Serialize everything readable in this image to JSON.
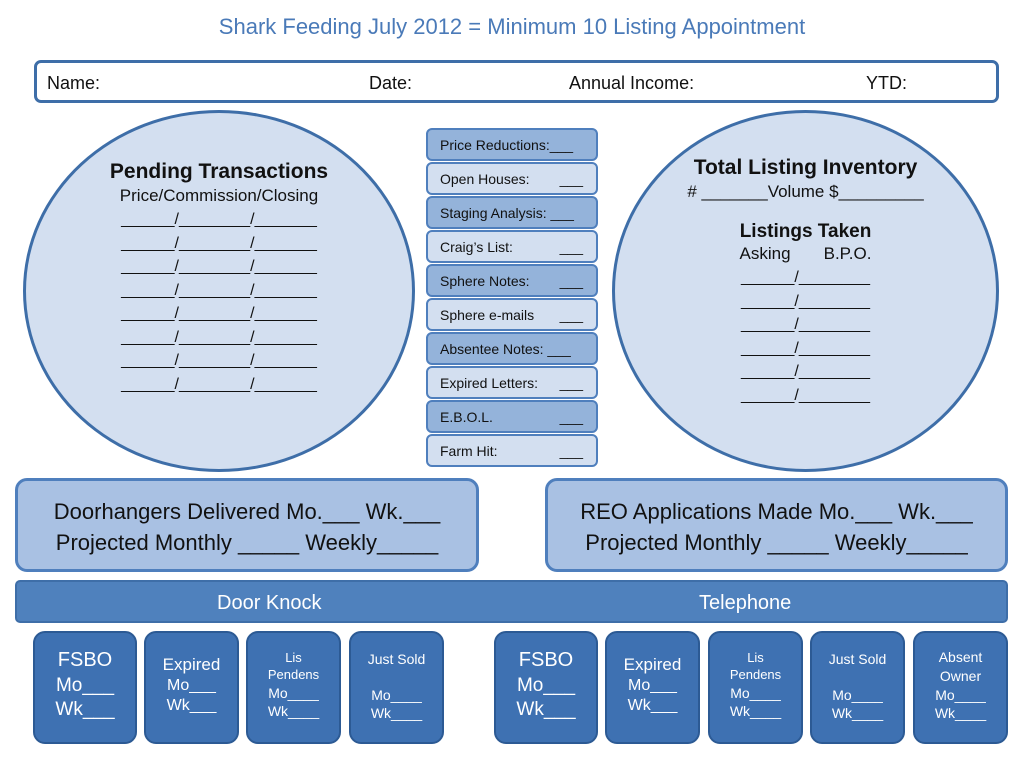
{
  "title": "Shark Feeding July 2012 = Minimum 10 Listing Appointment",
  "info_bar": {
    "name": "Name:",
    "date": "Date:",
    "annual_income": "Annual Income:",
    "ytd": "YTD:"
  },
  "pending": {
    "heading": "Pending Transactions",
    "sub": "Price/Commission/Closing",
    "line": "______/________/_______"
  },
  "inventory": {
    "heading": "Total Listing Inventory",
    "volume_line": "# _______Volume $_________",
    "listings_heading": "Listings Taken",
    "columns": "Asking       B.P.O.",
    "line": "______/________"
  },
  "activities": [
    {
      "label": "Price Reductions:___",
      "blank": ""
    },
    {
      "label": "Open Houses:",
      "blank": "___"
    },
    {
      "label": "Staging Analysis: ___",
      "blank": ""
    },
    {
      "label": "Craig’s List:",
      "blank": "___"
    },
    {
      "label": "Sphere Notes:",
      "blank": "___"
    },
    {
      "label": "Sphere e-mails",
      "blank": "___"
    },
    {
      "label": "Absentee Notes: ___",
      "blank": ""
    },
    {
      "label": "Expired Letters:",
      "blank": "___"
    },
    {
      "label": "E.B.O.L.",
      "blank": "___"
    },
    {
      "label": "Farm Hit:",
      "blank": "___"
    }
  ],
  "doorhangers": {
    "line1": "Doorhangers Delivered Mo.___ Wk.___",
    "line2": "Projected Monthly _____ Weekly_____"
  },
  "reo": {
    "line1": "REO Applications Made Mo.___ Wk.___",
    "line2": "Projected Monthly _____ Weekly_____"
  },
  "band": {
    "door_knock": "Door Knock",
    "telephone": "Telephone"
  },
  "door_knock_tiles": [
    {
      "title": "FSBO",
      "mo": "Mo___",
      "wk": "Wk___"
    },
    {
      "title": "Expired",
      "mo": "Mo___",
      "wk": "Wk___"
    },
    {
      "title_line1": "Lis",
      "title_line2": "Pendens",
      "mo": "Mo____",
      "wk": "Wk____"
    },
    {
      "title": "Just Sold",
      "mo": "Mo____",
      "wk": "Wk____"
    }
  ],
  "telephone_tiles": [
    {
      "title": "FSBO",
      "mo": "Mo___",
      "wk": "Wk___"
    },
    {
      "title": "Expired",
      "mo": "Mo___",
      "wk": "Wk___"
    },
    {
      "title_line1": "Lis",
      "title_line2": "Pendens",
      "mo": "Mo____",
      "wk": "Wk____"
    },
    {
      "title": "Just Sold",
      "mo": "Mo____",
      "wk": "Wk____"
    },
    {
      "title_line1": "Absent",
      "title_line2": "Owner",
      "mo": "Mo____",
      "wk": "Wk____"
    }
  ]
}
